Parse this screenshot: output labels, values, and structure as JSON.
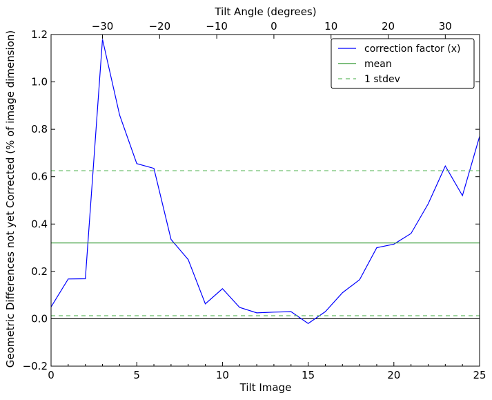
{
  "chart_data": {
    "type": "line",
    "xlabel": "Tilt Image",
    "ylabel": "Geometric Differences not yet Corrected (% of image dimension)",
    "top_xlabel": "Tilt Angle (degrees)",
    "xlim": [
      0,
      25
    ],
    "ylim": [
      -0.2,
      1.2
    ],
    "x_ticks": [
      0,
      5,
      10,
      15,
      20,
      25
    ],
    "x_tick_labels": [
      "0",
      "5",
      "10",
      "15",
      "20",
      "25"
    ],
    "y_ticks": [
      -0.2,
      0.0,
      0.2,
      0.4,
      0.6,
      0.8,
      1.0,
      1.2
    ],
    "y_tick_labels": [
      "−0.2",
      "0.0",
      "0.2",
      "0.4",
      "0.6",
      "0.8",
      "1.0",
      "1.2"
    ],
    "top_ticks": [
      -30,
      -20,
      -10,
      0,
      10,
      20,
      30
    ],
    "top_tick_labels": [
      "−30",
      "−20",
      "−10",
      "0",
      "10",
      "20",
      "30"
    ],
    "top_axis_map": {
      "x0": 3,
      "angle0": -30,
      "degrees_per_image": 3
    },
    "series": [
      {
        "name": "correction factor (x)",
        "color": "#0000ff",
        "style": "solid",
        "x": [
          0,
          1,
          2,
          3,
          4,
          5,
          6,
          7,
          8,
          9,
          10,
          11,
          12,
          13,
          14,
          15,
          16,
          17,
          18,
          19,
          20,
          21,
          22,
          23,
          24,
          25
        ],
        "y": [
          0.05,
          0.168,
          0.169,
          1.18,
          0.86,
          0.655,
          0.635,
          0.335,
          0.25,
          0.063,
          0.127,
          0.048,
          0.025,
          0.028,
          0.03,
          -0.02,
          0.03,
          0.11,
          0.165,
          0.3,
          0.315,
          0.36,
          0.485,
          0.645,
          0.52,
          0.77
        ]
      },
      {
        "name": "mean",
        "color": "#339933",
        "style": "solid",
        "x": [
          0,
          25
        ],
        "y": [
          0.32,
          0.32
        ]
      },
      {
        "name": "1 stdev",
        "color": "#66bb66",
        "style": "dashed",
        "x": [
          0,
          25
        ],
        "y": [
          0.625,
          0.625
        ]
      },
      {
        "name": "",
        "color": "#66bb66",
        "style": "dashed",
        "x": [
          0,
          25
        ],
        "y": [
          0.013,
          0.013
        ]
      }
    ],
    "reference_lines": [
      {
        "y": 0.0,
        "color": "#000000"
      }
    ],
    "grid": false,
    "legend_position": "top-right"
  }
}
